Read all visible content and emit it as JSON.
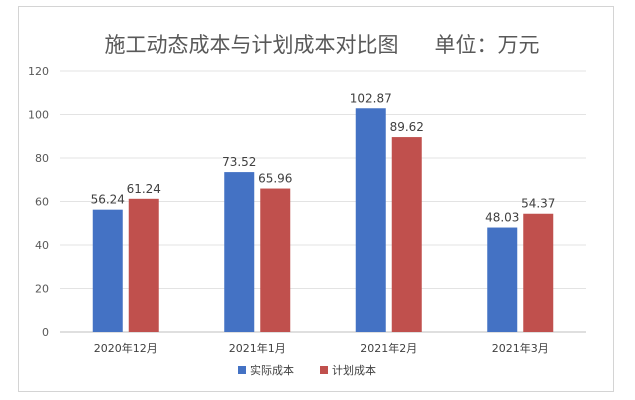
{
  "chart_data": {
    "type": "bar",
    "title": "施工动态成本与计划成本对比图",
    "unit_label": "单位：万元",
    "categories": [
      "2020年12月",
      "2021年1月",
      "2021年2月",
      "2021年3月"
    ],
    "series": [
      {
        "name": "实际成本",
        "color": "#4472c4",
        "values": [
          56.24,
          73.52,
          102.87,
          48.03
        ]
      },
      {
        "name": "计划成本",
        "color": "#c0504d",
        "values": [
          61.24,
          65.96,
          89.62,
          54.37
        ]
      }
    ],
    "value_labels": [
      [
        "56.24",
        "73.52",
        "102.87",
        "48.03"
      ],
      [
        "61.24",
        "65.96",
        "89.62",
        "54.37"
      ]
    ],
    "y_ticks": [
      "0",
      "20",
      "40",
      "60",
      "80",
      "100",
      "120"
    ],
    "ylim": [
      0,
      120
    ],
    "grid": true,
    "legend": "bottom"
  }
}
